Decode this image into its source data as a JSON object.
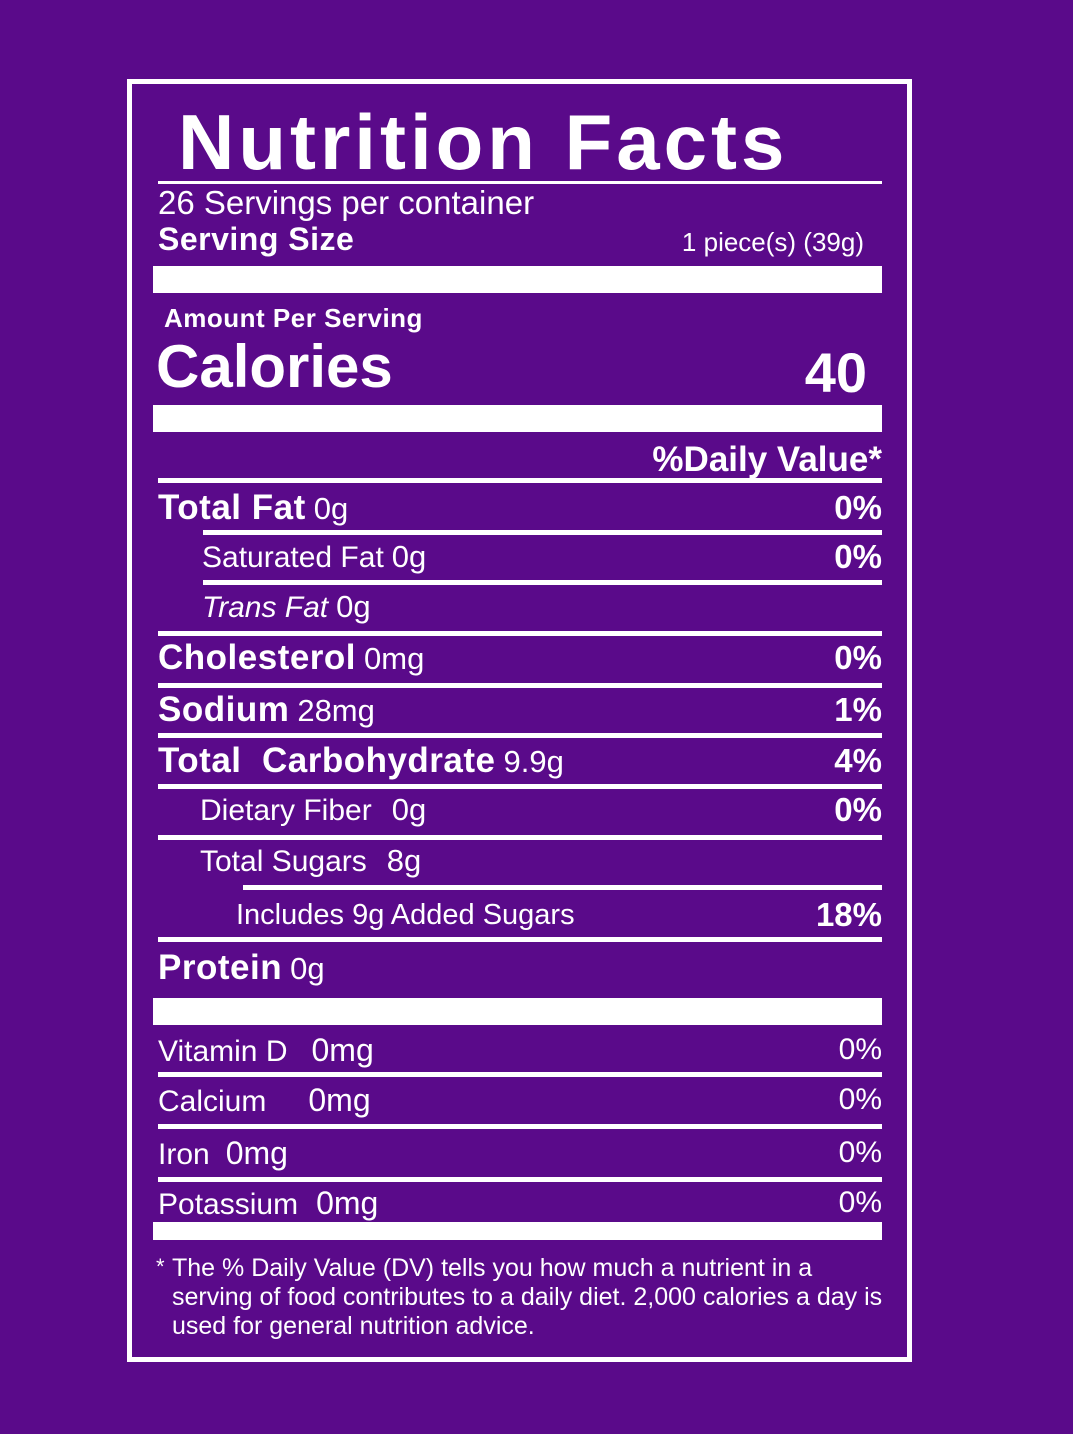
{
  "label": {
    "title": "Nutrition Facts",
    "servings_per_container": "26 Servings per container",
    "serving_size_label": "Serving Size",
    "serving_size_value": "1 piece(s) (39g)",
    "amount_per_serving": "Amount Per Serving",
    "calories_label": "Calories",
    "calories_value": "40",
    "daily_value_header": "%Daily Value*",
    "nutrients": [
      {
        "name": "Total Fat",
        "amount": "0g",
        "dv": "0%"
      },
      {
        "name": "Saturated Fat",
        "amount": "0g",
        "dv": "0%"
      },
      {
        "name": "Trans Fat",
        "amount": "0g"
      },
      {
        "name": "Cholesterol",
        "amount": "0mg",
        "dv": "0%"
      },
      {
        "name": "Sodium",
        "amount": "28mg",
        "dv": "1%"
      },
      {
        "name": "Total  Carbohydrate",
        "amount": "9.9g",
        "dv": "4%"
      },
      {
        "name": "Dietary Fiber",
        "amount": "0g",
        "dv": "0%"
      },
      {
        "name": "Total Sugars",
        "amount": "8g"
      },
      {
        "name": "Includes 9g Added Sugars",
        "dv": "18%"
      },
      {
        "name": "Protein",
        "amount": "0g"
      }
    ],
    "vitamins": [
      {
        "name": "Vitamin D",
        "amount": "0mg",
        "dv": "0%"
      },
      {
        "name": "Calcium",
        "amount": "0mg",
        "dv": "0%"
      },
      {
        "name": "Iron",
        "amount": "0mg",
        "dv": "0%"
      },
      {
        "name": "Potassium",
        "amount": "0mg",
        "dv": "0%"
      }
    ],
    "footnote_marker": "*",
    "footnote": "The % Daily Value (DV) tells you how much a nutrient in a serving of food contributes to a daily diet. 2,000 calories a day is used for general nutrition advice."
  },
  "colors": {
    "background": "#5a0a8a",
    "text": "#ffffff"
  }
}
